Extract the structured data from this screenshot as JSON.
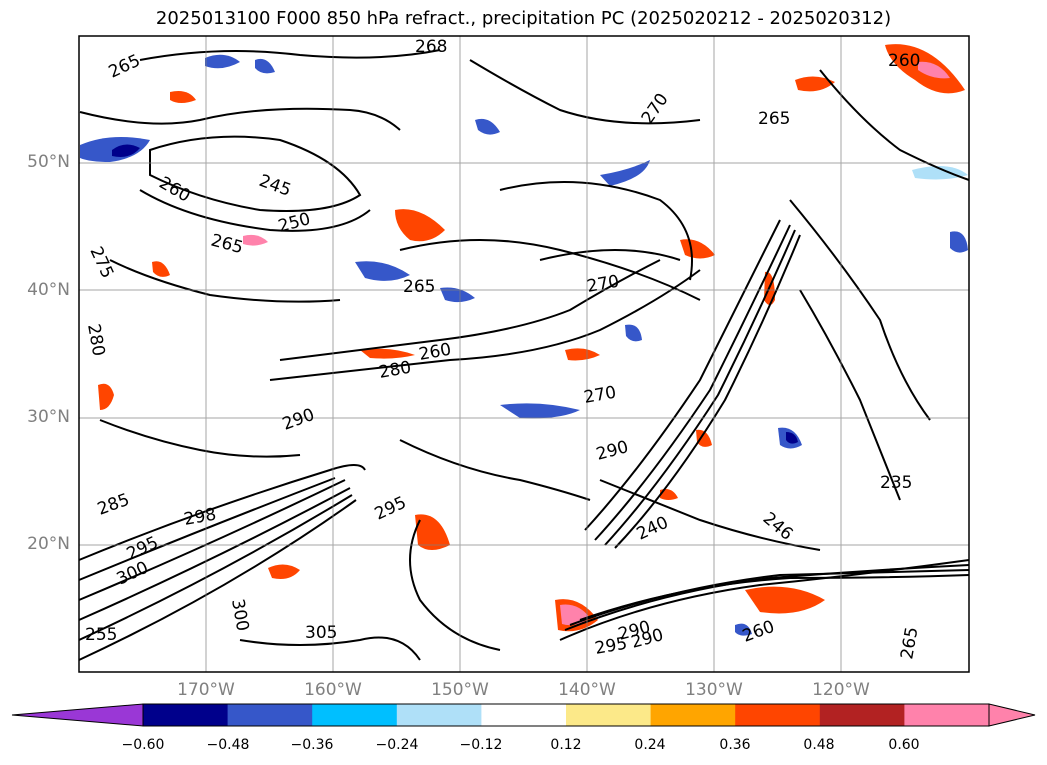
{
  "title": "2025013100 F000 850 hPa refract., precipitation PC (2025020212 - 2025020312)",
  "map": {
    "lat_labels": [
      "50°N",
      "40°N",
      "30°N",
      "20°N"
    ],
    "lon_labels": [
      "170°W",
      "160°W",
      "150°W",
      "140°W",
      "130°W",
      "120°W"
    ],
    "contour_labels": [
      "265",
      "268",
      "260",
      "245",
      "250",
      "265",
      "275",
      "280",
      "265",
      "260",
      "280",
      "270",
      "265",
      "270",
      "290",
      "290",
      "295",
      "270",
      "290",
      "240",
      "246",
      "235",
      "300",
      "298",
      "295",
      "285",
      "255",
      "305",
      "300",
      "290",
      "295",
      "260",
      "265",
      "260"
    ],
    "grid": true,
    "coastlines": true
  },
  "colorbar": {
    "tick_labels": [
      "−0.60",
      "−0.48",
      "−0.36",
      "−0.24",
      "−0.12",
      "0.12",
      "0.24",
      "0.36",
      "0.48",
      "0.60"
    ],
    "colors": [
      "#9a37d6",
      "#00008b",
      "#3657c9",
      "#00bfff",
      "#afe0f8",
      "#ffffff",
      "#fce989",
      "#ffa500",
      "#ff4500",
      "#b22222",
      "#ff82ab",
      "#ff82ab"
    ],
    "extend": "both"
  }
}
